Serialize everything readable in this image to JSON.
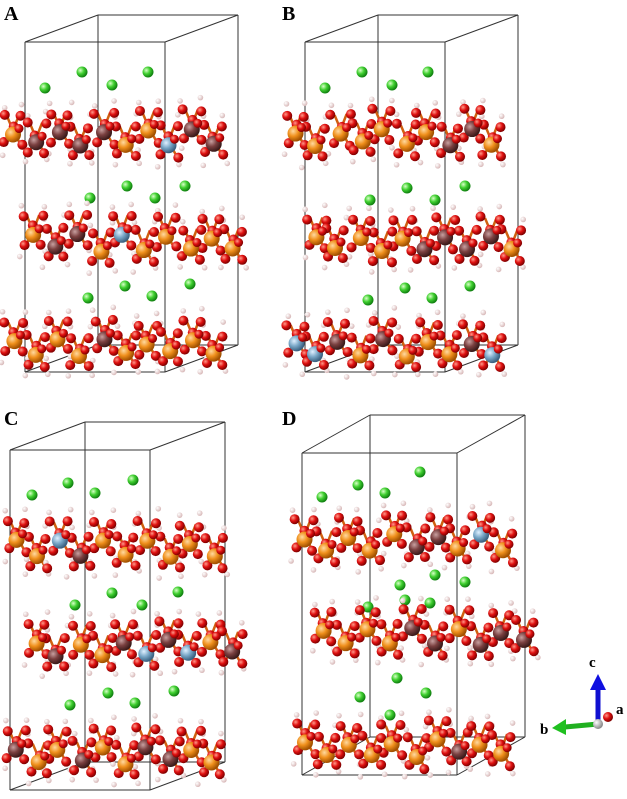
{
  "panels": [
    {
      "label": "A"
    },
    {
      "label": "B"
    },
    {
      "label": "C"
    },
    {
      "label": "D"
    }
  ],
  "axes": {
    "c": "c",
    "a": "a",
    "b": "b"
  }
}
